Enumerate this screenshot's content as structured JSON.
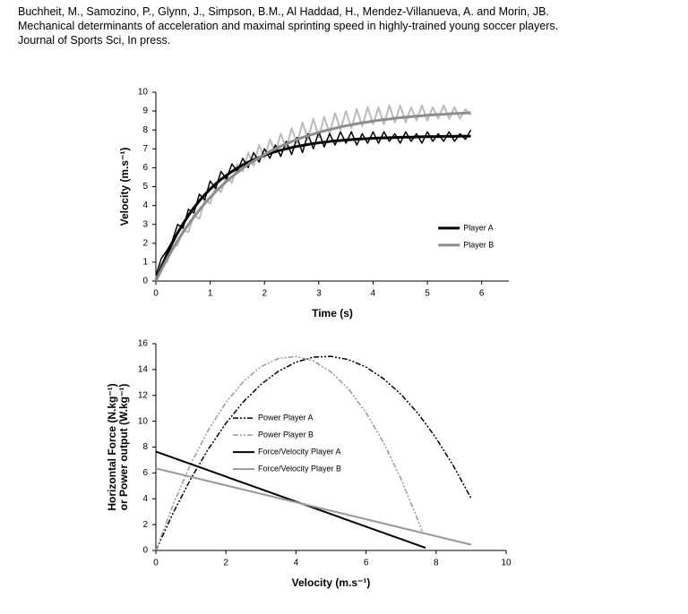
{
  "citation": [
    "Buchheit, M., Samozino, P., Glynn, J., Simpson, B.M., Al Haddad, H., Mendez-Villanueva, A. and Morin, JB.",
    "Mechanical determinants of acceleration and maximal sprinting speed in highly-trained young soccer players.",
    "Journal of Sports Sci, In press."
  ],
  "chart_data": [
    {
      "type": "line",
      "xlabel": "Time (s)",
      "ylabel": [
        "Velocity (m.s⁻¹)"
      ],
      "x": [
        0,
        0.1,
        0.2,
        0.3,
        0.4,
        0.5,
        0.6,
        0.7,
        0.8,
        0.9,
        1,
        1.1,
        1.2,
        1.3,
        1.4,
        1.5,
        1.6,
        1.7,
        1.8,
        1.9,
        2,
        2.1,
        2.2,
        2.3,
        2.4,
        2.5,
        2.6,
        2.7,
        2.8,
        2.9,
        3,
        3.1,
        3.2,
        3.3,
        3.4,
        3.5,
        3.6,
        3.7,
        3.8,
        3.9,
        4,
        4.1,
        4.2,
        4.3,
        4.4,
        4.5,
        4.6,
        4.7,
        4.8,
        4.9,
        5,
        5.1,
        5.2,
        5.3,
        5.4,
        5.5,
        5.6,
        5.7,
        5.8
      ],
      "series": [
        {
          "color": "#bbbbbb",
          "width": 2,
          "values": [
            0.2,
            0.9,
            1.0,
            1.8,
            1.9,
            2.7,
            2.6,
            3.5,
            3.3,
            4.3,
            4.1,
            5.0,
            4.7,
            5.6,
            5.2,
            6.2,
            5.8,
            6.8,
            6.1,
            7.2,
            6.5,
            7.5,
            6.8,
            7.8,
            7.0,
            8.1,
            7.3,
            8.4,
            7.5,
            8.6,
            7.6,
            8.7,
            7.8,
            8.9,
            8.0,
            9.0,
            8.1,
            9.1,
            8.2,
            9.2,
            8.3,
            9.2,
            8.3,
            9.3,
            8.4,
            9.3,
            8.4,
            9.2,
            8.5,
            9.3,
            8.5,
            9.2,
            8.6,
            9.3,
            8.6,
            9.2,
            8.6,
            9.1,
            8.8
          ]
        },
        {
          "color": "#000000",
          "width": 1.5,
          "values": [
            0.3,
            1.2,
            1.6,
            2.1,
            3.0,
            2.8,
            3.8,
            3.6,
            4.6,
            4.3,
            5.3,
            4.9,
            5.8,
            5.4,
            6.2,
            5.8,
            6.5,
            6.0,
            6.8,
            6.3,
            7.0,
            6.5,
            7.2,
            6.6,
            7.4,
            6.7,
            7.6,
            6.8,
            7.8,
            7.0,
            7.9,
            7.1,
            7.8,
            7.2,
            7.9,
            7.3,
            7.9,
            7.2,
            7.8,
            7.3,
            7.9,
            7.3,
            7.9,
            7.4,
            7.8,
            7.3,
            7.9,
            7.4,
            7.8,
            7.3,
            7.9,
            7.4,
            7.8,
            7.4,
            7.9,
            7.4,
            7.8,
            7.5,
            8.0
          ]
        },
        {
          "name": "Player A",
          "color": "#000000",
          "width": 3,
          "values": [
            0,
            0.73,
            1.4,
            2.0,
            2.55,
            3.03,
            3.47,
            3.88,
            4.24,
            4.57,
            4.87,
            5.14,
            5.38,
            5.6,
            5.8,
            5.98,
            6.15,
            6.29,
            6.43,
            6.55,
            6.66,
            6.76,
            6.85,
            6.93,
            7.0,
            7.07,
            7.13,
            7.18,
            7.23,
            7.28,
            7.32,
            7.35,
            7.39,
            7.42,
            7.44,
            7.47,
            7.49,
            7.51,
            7.53,
            7.54,
            7.56,
            7.57,
            7.58,
            7.59,
            7.6,
            7.61,
            7.62,
            7.62,
            7.63,
            7.64,
            7.64,
            7.65,
            7.65,
            7.66,
            7.66,
            7.66,
            7.67,
            7.67,
            7.67
          ]
        },
        {
          "name": "Player B",
          "color": "#8c8c8c",
          "width": 3,
          "values": [
            0,
            0.59,
            1.14,
            1.65,
            2.13,
            2.58,
            3.0,
            3.39,
            3.76,
            4.11,
            4.43,
            4.73,
            5.01,
            5.27,
            5.52,
            5.75,
            5.97,
            6.17,
            6.36,
            6.54,
            6.7,
            6.86,
            7.0,
            7.14,
            7.26,
            7.38,
            7.49,
            7.6,
            7.69,
            7.78,
            7.87,
            7.95,
            8.02,
            8.09,
            8.16,
            8.22,
            8.27,
            8.33,
            8.38,
            8.42,
            8.47,
            8.51,
            8.55,
            8.58,
            8.62,
            8.65,
            8.68,
            8.7,
            8.73,
            8.75,
            8.78,
            8.8,
            8.82,
            8.83,
            8.85,
            8.87,
            8.88,
            8.9,
            8.91
          ]
        }
      ],
      "xlim": [
        0,
        6.5
      ],
      "xticks": [
        0,
        1,
        2,
        3,
        4,
        5,
        6
      ],
      "ylim": [
        0,
        10
      ],
      "yticks": [
        0,
        1,
        2,
        3,
        4,
        5,
        6,
        7,
        8,
        9,
        10
      ],
      "legend": "center right"
    },
    {
      "type": "line",
      "xlabel": "Velocity (m.s⁻¹)",
      "ylabel": [
        "Horizontal Force (N.kg⁻¹)",
        "or Power output (W.kg⁻¹)"
      ],
      "series": [
        {
          "name": "Power Player A",
          "color": "#000000",
          "width": 1.5,
          "dash": "6,2,2,2,2,2",
          "x": [
            0,
            0.5,
            1,
            1.5,
            2,
            2.5,
            3,
            3.5,
            4,
            4.5,
            5,
            5.5,
            6,
            6.5,
            7,
            7.5,
            8,
            8.5,
            9
          ],
          "values": [
            0,
            2.94,
            5.56,
            7.86,
            9.84,
            11.51,
            12.85,
            13.87,
            14.57,
            14.96,
            15.02,
            14.77,
            14.19,
            13.29,
            12.08,
            10.55,
            8.69,
            6.52,
            4.03
          ]
        },
        {
          "name": "Power Player B",
          "color": "#999999",
          "width": 1.5,
          "dash": "6,2,2,2,2,2",
          "x": [
            0,
            0.5,
            1,
            1.5,
            2,
            2.5,
            3,
            3.5,
            4,
            4.5,
            5,
            5.5,
            6,
            6.5,
            7,
            7.5,
            7.6
          ],
          "values": [
            0,
            3.6,
            6.71,
            9.33,
            11.45,
            13.08,
            14.22,
            14.86,
            15.01,
            14.66,
            13.82,
            12.49,
            10.66,
            8.34,
            5.53,
            2.22,
            1.5
          ]
        },
        {
          "name": "Force/Velocity Player A",
          "color": "#000000",
          "width": 2,
          "x": [
            0,
            7.7
          ],
          "values": [
            7.65,
            0.2
          ]
        },
        {
          "name": "Force/Velocity Player B",
          "color": "#999999",
          "width": 2,
          "x": [
            0,
            9
          ],
          "values": [
            6.35,
            0.45
          ]
        }
      ],
      "xlim": [
        0,
        10
      ],
      "xticks": [
        0,
        2,
        4,
        6,
        8,
        10
      ],
      "ylim": [
        0,
        16
      ],
      "yticks": [
        0,
        2,
        4,
        6,
        8,
        10,
        12,
        14,
        16
      ],
      "legend": "upper left"
    }
  ]
}
